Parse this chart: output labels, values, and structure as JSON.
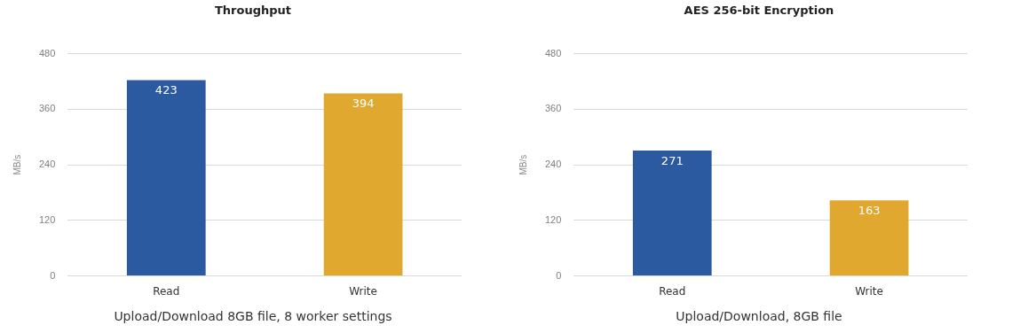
{
  "chart_data": [
    {
      "type": "bar",
      "title": "Throughput",
      "ylabel": "MB/s",
      "categories": [
        "Read",
        "Write"
      ],
      "values": [
        423,
        394
      ],
      "colors": [
        "#2b5aa0",
        "#e0a82e"
      ],
      "ylim": [
        0,
        480
      ],
      "yticks": [
        0,
        120,
        240,
        360,
        480
      ],
      "grid": "y",
      "data_labels": true,
      "annotations": [
        "Upload/Download 8GB file, 8 worker settings"
      ]
    },
    {
      "type": "bar",
      "title": "AES 256-bit Encryption",
      "ylabel": "MB/s",
      "categories": [
        "Read",
        "Write"
      ],
      "values": [
        271,
        163
      ],
      "colors": [
        "#2b5aa0",
        "#e0a82e"
      ],
      "ylim": [
        0,
        480
      ],
      "yticks": [
        0,
        120,
        240,
        360,
        480
      ],
      "grid": "y",
      "data_labels": true,
      "annotations": [
        "Upload/Download, 8GB file"
      ]
    }
  ]
}
